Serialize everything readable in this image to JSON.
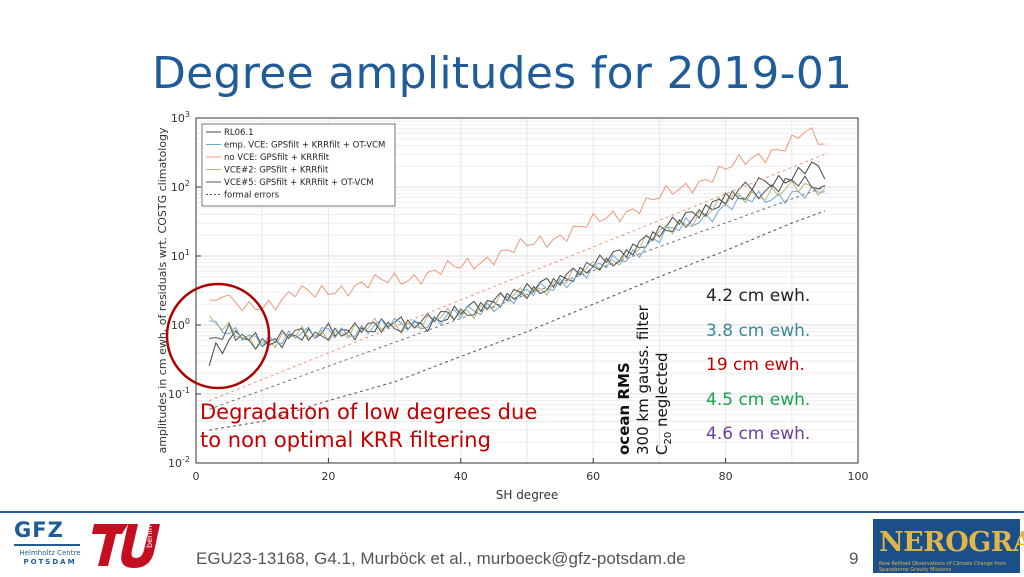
{
  "slide": {
    "title": "Degree amplitudes for 2019-01",
    "annotation_line1": "Degradation of low degrees due",
    "annotation_line2": "to non optimal KRR filtering",
    "footer": "EGU23-13168, G4.1, Murböck et al., murboeck@gfz-potsdam.de",
    "page_number": "9"
  },
  "rms_block": {
    "heading": "ocean RMS",
    "line2": "300 km gauss. filter",
    "line3": "C",
    "line3_sub": "20",
    "line3_rest": " neglected",
    "values": [
      {
        "text": "4.2 cm ewh.",
        "color": "#222222"
      },
      {
        "text": "3.8 cm ewh.",
        "color": "#3a8a9a"
      },
      {
        "text": "19 cm ewh.",
        "color": "#c00000"
      },
      {
        "text": "4.5 cm ewh.",
        "color": "#16a34a"
      },
      {
        "text": "4.6 cm ewh.",
        "color": "#6b3fa0"
      }
    ]
  },
  "logos": {
    "gfz_big": "GFZ",
    "gfz_small1": "Helmholtz Centre",
    "gfz_small2": "POTSDAM",
    "tu_text": "berlin",
    "nerograv_title": "NEROGRAV",
    "nerograv_sub": "New Refined Observations of Climate Change from Spaceborne Gravity Missions"
  },
  "chart_data": {
    "type": "line",
    "xlabel": "SH degree",
    "ylabel": "amplitudes in cm ewh. of residuals wrt. COSTG climatology",
    "xlim": [
      0,
      100
    ],
    "ylim_log10": [
      -2,
      3
    ],
    "yscale": "log",
    "xticks": [
      "0",
      "20",
      "40",
      "60",
      "80",
      "100"
    ],
    "yticks_exp": [
      "-2",
      "-1",
      "0",
      "1",
      "2",
      "3"
    ],
    "grid": true,
    "legend_position": "top-left",
    "series": [
      {
        "name": "RL06.1",
        "color": "#444444",
        "style": "solid",
        "points": [
          [
            2,
            0.35
          ],
          [
            3,
            0.55
          ],
          [
            4,
            0.4
          ],
          [
            5,
            0.75
          ],
          [
            6,
            0.65
          ],
          [
            8,
            0.6
          ],
          [
            10,
            0.55
          ],
          [
            12,
            0.6
          ],
          [
            15,
            0.75
          ],
          [
            18,
            0.65
          ],
          [
            20,
            0.8
          ],
          [
            25,
            0.85
          ],
          [
            30,
            1.0
          ],
          [
            35,
            1.1
          ],
          [
            40,
            1.5
          ],
          [
            45,
            2.3
          ],
          [
            50,
            3.0
          ],
          [
            55,
            4.8
          ],
          [
            60,
            7
          ],
          [
            65,
            12
          ],
          [
            70,
            22
          ],
          [
            75,
            40
          ],
          [
            80,
            70
          ],
          [
            85,
            110
          ],
          [
            90,
            150
          ],
          [
            93,
            200
          ],
          [
            95,
            130
          ]
        ]
      },
      {
        "name": "emp. VCE: GPSfilt + KRRfilt + OT-VCM",
        "color": "#6aa8d8",
        "style": "solid",
        "points": [
          [
            2,
            1.5
          ],
          [
            3,
            1.0
          ],
          [
            4,
            0.9
          ],
          [
            5,
            0.75
          ],
          [
            6,
            0.7
          ],
          [
            8,
            0.6
          ],
          [
            10,
            0.6
          ],
          [
            12,
            0.65
          ],
          [
            15,
            0.75
          ],
          [
            18,
            0.7
          ],
          [
            20,
            0.8
          ],
          [
            25,
            0.85
          ],
          [
            30,
            1.0
          ],
          [
            35,
            1.1
          ],
          [
            40,
            1.4
          ],
          [
            45,
            2.0
          ],
          [
            50,
            2.7
          ],
          [
            55,
            4.2
          ],
          [
            60,
            6
          ],
          [
            65,
            10
          ],
          [
            70,
            18
          ],
          [
            75,
            32
          ],
          [
            80,
            50
          ],
          [
            85,
            70
          ],
          [
            90,
            80
          ],
          [
            93,
            75
          ],
          [
            95,
            85
          ]
        ]
      },
      {
        "name": "no VCE: GPSfilt + KRRfilt",
        "color": "#ee9978",
        "style": "solid",
        "points": [
          [
            2,
            2.5
          ],
          [
            3,
            2.0
          ],
          [
            4,
            3.0
          ],
          [
            5,
            2.2
          ],
          [
            6,
            1.8
          ],
          [
            8,
            1.7
          ],
          [
            10,
            2.0
          ],
          [
            12,
            2.2
          ],
          [
            15,
            3.0
          ],
          [
            18,
            2.7
          ],
          [
            20,
            3.2
          ],
          [
            25,
            3.8
          ],
          [
            30,
            4.5
          ],
          [
            35,
            5.5
          ],
          [
            40,
            7
          ],
          [
            45,
            10
          ],
          [
            50,
            14
          ],
          [
            55,
            20
          ],
          [
            60,
            30
          ],
          [
            65,
            45
          ],
          [
            70,
            70
          ],
          [
            75,
            110
          ],
          [
            80,
            180
          ],
          [
            85,
            280
          ],
          [
            90,
            450
          ],
          [
            92,
            600
          ],
          [
            95,
            420
          ]
        ]
      },
      {
        "name": "VCE#2: GPSfilt + KRRfilt",
        "color": "#b8b87a",
        "style": "solid",
        "points": [
          [
            2,
            1.2
          ],
          [
            3,
            1.0
          ],
          [
            4,
            0.9
          ],
          [
            5,
            0.8
          ],
          [
            6,
            0.7
          ],
          [
            8,
            0.6
          ],
          [
            10,
            0.58
          ],
          [
            12,
            0.62
          ],
          [
            15,
            0.7
          ],
          [
            18,
            0.68
          ],
          [
            20,
            0.78
          ],
          [
            25,
            0.85
          ],
          [
            30,
            1.0
          ],
          [
            35,
            1.1
          ],
          [
            40,
            1.45
          ],
          [
            45,
            2.1
          ],
          [
            50,
            2.8
          ],
          [
            55,
            4.4
          ],
          [
            60,
            6.5
          ],
          [
            65,
            11
          ],
          [
            70,
            20
          ],
          [
            75,
            35
          ],
          [
            80,
            60
          ],
          [
            85,
            80
          ],
          [
            90,
            95
          ],
          [
            93,
            90
          ],
          [
            95,
            95
          ]
        ]
      },
      {
        "name": "VCE#5: GPSfilt + KRRfilt + OT-VCM",
        "color": "#555555",
        "style": "solid",
        "points": [
          [
            2,
            0.5
          ],
          [
            3,
            0.7
          ],
          [
            4,
            0.55
          ],
          [
            5,
            0.8
          ],
          [
            6,
            0.7
          ],
          [
            8,
            0.62
          ],
          [
            10,
            0.58
          ],
          [
            12,
            0.62
          ],
          [
            15,
            0.72
          ],
          [
            18,
            0.7
          ],
          [
            20,
            0.8
          ],
          [
            25,
            0.85
          ],
          [
            30,
            1.0
          ],
          [
            35,
            1.15
          ],
          [
            40,
            1.5
          ],
          [
            45,
            2.2
          ],
          [
            50,
            2.9
          ],
          [
            55,
            4.6
          ],
          [
            60,
            6.8
          ],
          [
            65,
            11
          ],
          [
            70,
            21
          ],
          [
            75,
            38
          ],
          [
            80,
            62
          ],
          [
            85,
            90
          ],
          [
            90,
            110
          ],
          [
            93,
            110
          ],
          [
            95,
            105
          ]
        ]
      },
      {
        "name": "formal errors",
        "color": "#555555",
        "style": "dashed",
        "points": [
          [
            2,
            0.03
          ],
          [
            10,
            0.04
          ],
          [
            20,
            0.08
          ],
          [
            30,
            0.15
          ],
          [
            40,
            0.35
          ],
          [
            50,
            0.8
          ],
          [
            60,
            2
          ],
          [
            70,
            5
          ],
          [
            80,
            12
          ],
          [
            90,
            30
          ],
          [
            95,
            45
          ]
        ]
      }
    ]
  }
}
